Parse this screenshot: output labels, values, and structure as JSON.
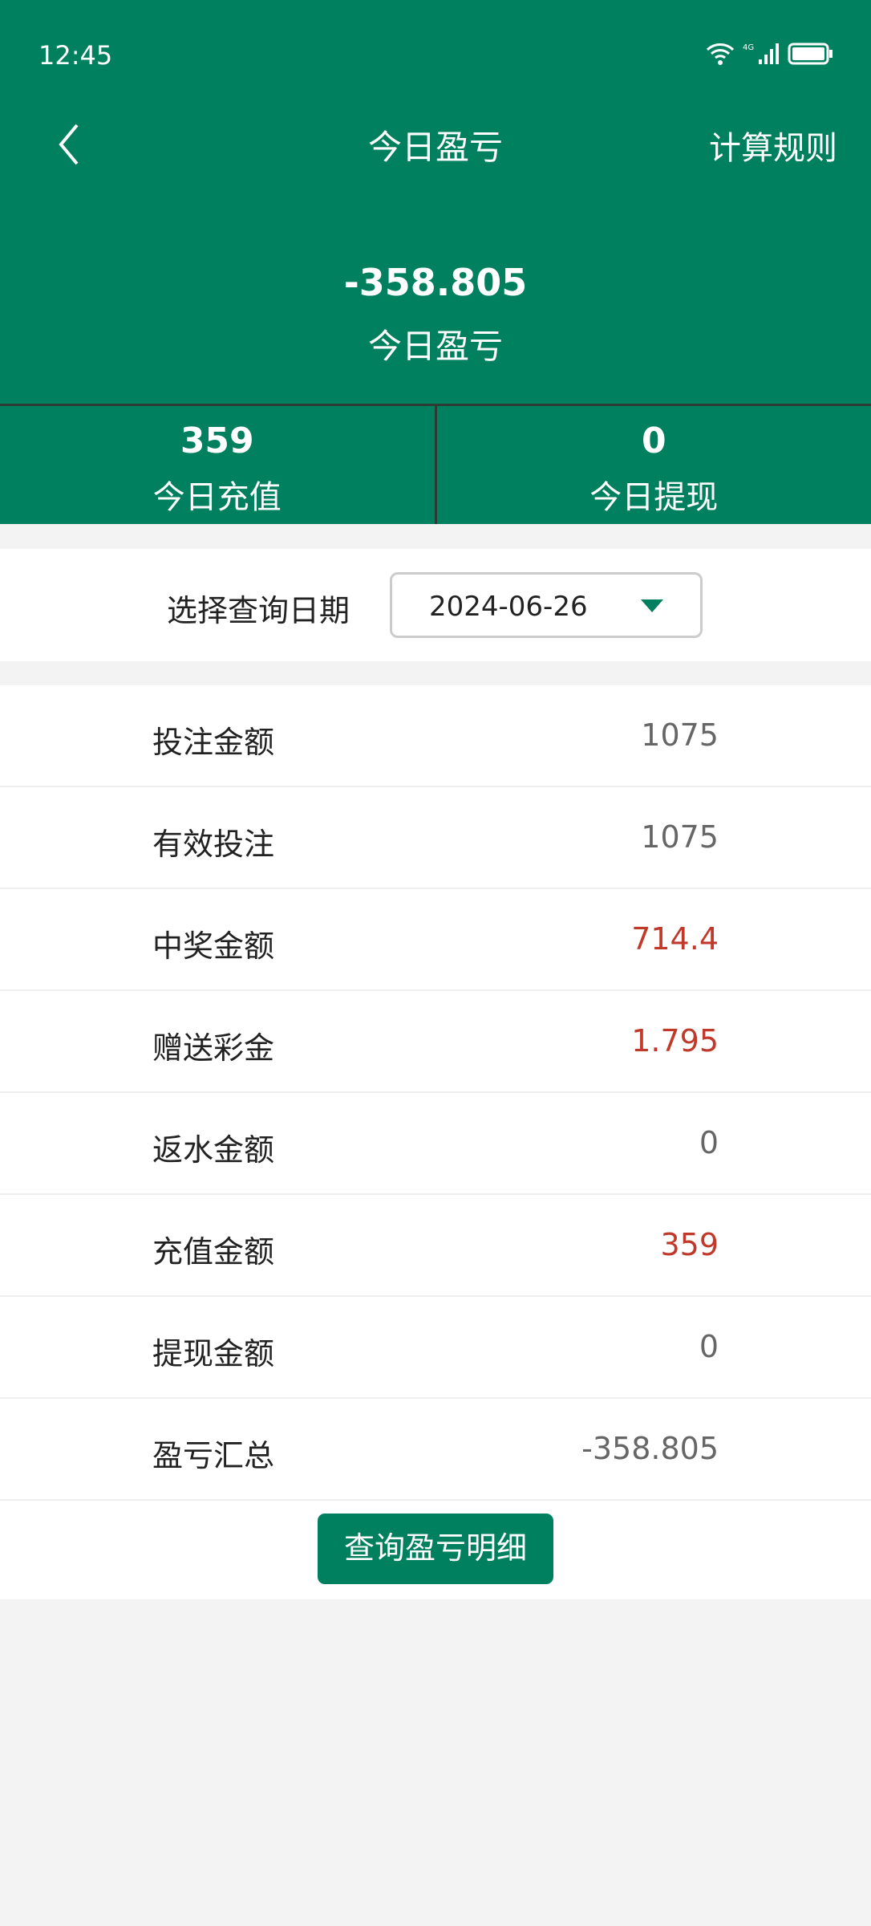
{
  "status_bar": {
    "time": "12:45",
    "icons": [
      "wifi-icon",
      "4g-signal-icon",
      "battery-icon"
    ],
    "network": "4G"
  },
  "header": {
    "title": "今日盈亏",
    "rules_label": "计算规则",
    "back_icon": "chevron-left-icon"
  },
  "summary": {
    "value": "-358.805",
    "label": "今日盈亏"
  },
  "stats": [
    {
      "value": "359",
      "label": "今日充值"
    },
    {
      "value": "0",
      "label": "今日提现"
    }
  ],
  "date_filter": {
    "label": "选择查询日期",
    "value": "2024-06-26"
  },
  "rows": [
    {
      "label": "投注金额",
      "value": "1075",
      "color": "#666666"
    },
    {
      "label": "有效投注",
      "value": "1075",
      "color": "#666666"
    },
    {
      "label": "中奖金额",
      "value": "714.4",
      "color": "#c0392b"
    },
    {
      "label": "赠送彩金",
      "value": "1.795",
      "color": "#c0392b"
    },
    {
      "label": "返水金额",
      "value": "0",
      "color": "#666666"
    },
    {
      "label": "充值金额",
      "value": "359",
      "color": "#c0392b"
    },
    {
      "label": "提现金额",
      "value": "0",
      "color": "#666666"
    },
    {
      "label": "盈亏汇总",
      "value": "-358.805",
      "color": "#666666"
    }
  ],
  "detail_button": "查询盈亏明细",
  "colors": {
    "brand": "#00805e",
    "positive": "#c0392b"
  }
}
